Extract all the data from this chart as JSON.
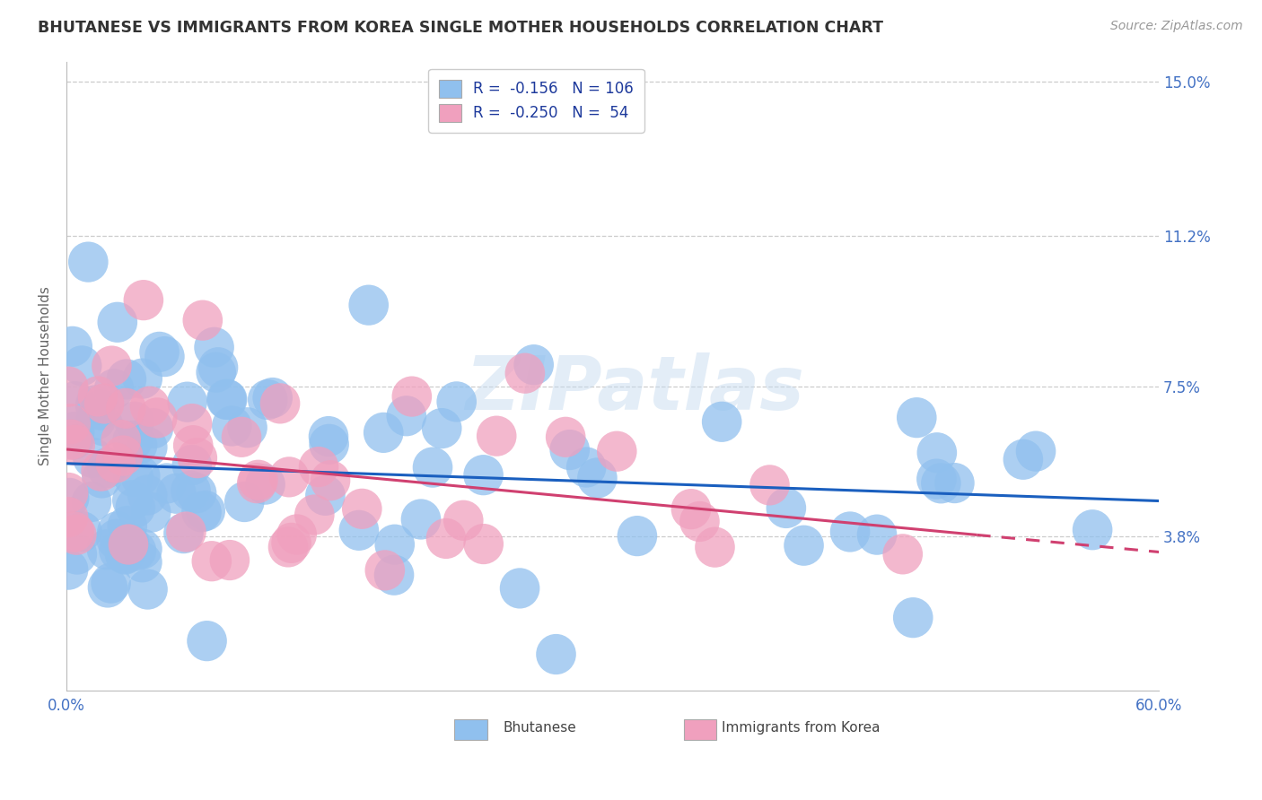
{
  "title": "BHUTANESE VS IMMIGRANTS FROM KOREA SINGLE MOTHER HOUSEHOLDS CORRELATION CHART",
  "source": "Source: ZipAtlas.com",
  "ylabel": "Single Mother Households",
  "xlim": [
    0.0,
    0.6
  ],
  "ylim": [
    0.0,
    0.155
  ],
  "yticks": [
    0.038,
    0.075,
    0.112,
    0.15
  ],
  "ytick_labels": [
    "3.8%",
    "7.5%",
    "11.2%",
    "15.0%"
  ],
  "xtick_labels": [
    "0.0%",
    "60.0%"
  ],
  "xtick_vals": [
    0.0,
    0.6
  ],
  "blue_color": "#90C0EE",
  "pink_color": "#F0A0BE",
  "line_blue": "#1A5FBF",
  "line_pink": "#D04070",
  "legend_R_blue": "-0.156",
  "legend_N_blue": "106",
  "legend_R_pink": "-0.250",
  "legend_N_pink": "54",
  "watermark": "ZIPatlas",
  "title_color": "#333333",
  "axis_label_color": "#4472C4",
  "grid_color": "#CCCCCC",
  "blue_intercept": 0.057,
  "blue_slope": -0.022,
  "pink_intercept": 0.062,
  "pink_slope": -0.055
}
